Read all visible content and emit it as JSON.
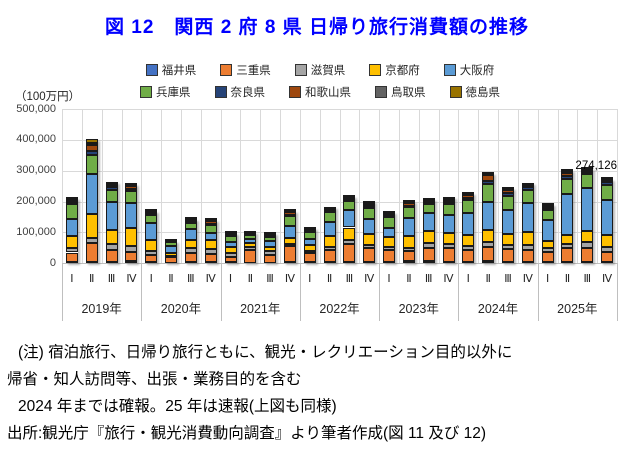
{
  "title": {
    "text": "図 12　関西 2 府 8 県 日帰り旅行消費額の推移"
  },
  "chart": {
    "unit_label": "（100万円）",
    "annotation_text": "274,126"
  },
  "chart_data": {
    "type": "bar",
    "stacked": true,
    "title": "図12 関西2府8県 日帰り旅行消費額の推移",
    "ylabel": "（100万円）",
    "xlabel": "",
    "ylim": [
      0,
      500000
    ],
    "y_tick_step": 100000,
    "y_ticks": [
      "0",
      "100,000",
      "200,000",
      "300,000",
      "400,000",
      "500,000"
    ],
    "grid": true,
    "legend_position": "top",
    "years": [
      "2019年",
      "2020年",
      "2021年",
      "2022年",
      "2023年",
      "2024年",
      "2025年"
    ],
    "quarters": [
      "Ⅰ",
      "Ⅱ",
      "Ⅲ",
      "Ⅳ"
    ],
    "categories": [
      "2019-Ⅰ",
      "2019-Ⅱ",
      "2019-Ⅲ",
      "2019-Ⅳ",
      "2020-Ⅰ",
      "2020-Ⅱ",
      "2020-Ⅲ",
      "2020-Ⅳ",
      "2021-Ⅰ",
      "2021-Ⅱ",
      "2021-Ⅲ",
      "2021-Ⅳ",
      "2022-Ⅰ",
      "2022-Ⅱ",
      "2022-Ⅲ",
      "2022-Ⅳ",
      "2023-Ⅰ",
      "2023-Ⅱ",
      "2023-Ⅲ",
      "2023-Ⅳ",
      "2024-Ⅰ",
      "2024-Ⅱ",
      "2024-Ⅲ",
      "2024-Ⅳ",
      "2025-Ⅰ",
      "2025-Ⅱ",
      "2025-Ⅲ",
      "2025-Ⅳ"
    ],
    "legend_rows": [
      [
        0,
        1,
        2,
        3,
        4
      ],
      [
        5,
        6,
        7,
        8,
        9
      ]
    ],
    "series": [
      {
        "name": "福井県",
        "color": "#4472C4",
        "values": [
          5000,
          5000,
          5000,
          8000,
          3000,
          2000,
          3000,
          3000,
          3000,
          2000,
          2000,
          3000,
          3000,
          3000,
          5000,
          5000,
          4000,
          8000,
          8000,
          5000,
          5000,
          8000,
          5000,
          5000,
          4000,
          5000,
          5000,
          4000
        ]
      },
      {
        "name": "三重県",
        "color": "#ED7D31",
        "values": [
          30000,
          60000,
          38000,
          30000,
          24000,
          19000,
          30000,
          27000,
          18000,
          41000,
          25000,
          53000,
          30000,
          40000,
          57000,
          44000,
          39000,
          32000,
          41000,
          45000,
          38000,
          46000,
          40000,
          38000,
          32000,
          43000,
          46000,
          34000
        ]
      },
      {
        "name": "滋賀県",
        "color": "#A5A5A5",
        "values": [
          16000,
          16000,
          20000,
          19000,
          13000,
          3000,
          16000,
          15000,
          13000,
          9000,
          14000,
          5000,
          7000,
          11000,
          14000,
          11000,
          11000,
          11000,
          16000,
          14000,
          14000,
          14000,
          14000,
          16000,
          13000,
          13000,
          18000,
          16000
        ]
      },
      {
        "name": "京都府",
        "color": "#FFC000",
        "values": [
          38000,
          80000,
          45000,
          58000,
          34000,
          8000,
          25000,
          30000,
          18000,
          13000,
          13000,
          22000,
          20000,
          35000,
          40000,
          35000,
          30000,
          36000,
          40000,
          35000,
          35000,
          40000,
          35000,
          43000,
          24000,
          30000,
          35000,
          38000
        ]
      },
      {
        "name": "大阪府",
        "color": "#5B9BD5",
        "values": [
          54000,
          127000,
          92000,
          81000,
          57000,
          24000,
          37000,
          24000,
          18000,
          13000,
          19000,
          38000,
          18000,
          44000,
          58000,
          47000,
          30000,
          60000,
          58000,
          57000,
          70000,
          90000,
          80000,
          95000,
          68000,
          135000,
          139000,
          114000
        ]
      },
      {
        "name": "兵庫県",
        "color": "#70AD47",
        "values": [
          48000,
          62000,
          38000,
          38000,
          24000,
          12000,
          20000,
          25000,
          18000,
          14000,
          13000,
          33000,
          23000,
          32000,
          29000,
          38000,
          35000,
          34000,
          29000,
          36000,
          42000,
          59000,
          43000,
          41000,
          33000,
          48000,
          47000,
          49000
        ]
      },
      {
        "name": "奈良県",
        "color": "#264478",
        "values": [
          9000,
          14000,
          8000,
          8000,
          6000,
          1000,
          4000,
          5000,
          3000,
          2000,
          3000,
          4000,
          4000,
          4000,
          5000,
          5000,
          5000,
          6000,
          5000,
          6000,
          8000,
          11000,
          11000,
          8000,
          5000,
          9000,
          6000,
          10000
        ]
      },
      {
        "name": "和歌山県",
        "color": "#9E480E",
        "values": [
          5000,
          18000,
          9000,
          8000,
          6000,
          1000,
          5000,
          8000,
          4000,
          2000,
          4000,
          9000,
          4000,
          5000,
          5000,
          8000,
          5000,
          8000,
          5000,
          8000,
          8000,
          17000,
          8000,
          5000,
          6000,
          11000,
          6000,
          5000
        ]
      },
      {
        "name": "鳥取県",
        "color": "#636363",
        "values": [
          2000,
          9000,
          3000,
          3000,
          2000,
          1000,
          2000,
          2000,
          2000,
          2000,
          2000,
          2000,
          2000,
          3000,
          3000,
          4000,
          3000,
          4000,
          3000,
          4000,
          4000,
          4000,
          4000,
          4000,
          3000,
          4000,
          4000,
          2000
        ]
      },
      {
        "name": "徳島県",
        "color": "#997300",
        "values": [
          4000,
          11000,
          5000,
          5000,
          2000,
          1000,
          2000,
          2000,
          2000,
          2000,
          2000,
          2000,
          2000,
          4000,
          3000,
          4000,
          3000,
          4000,
          3000,
          4000,
          4000,
          4000,
          4000,
          4000,
          3000,
          4000,
          4000,
          2126
        ]
      }
    ],
    "annotation": {
      "text": "274,126",
      "category": "2025-Ⅳ",
      "value": 274126
    }
  },
  "notes": [
    "(注) 宿泊旅行、日帰り旅行ともに、観光・レクリエーション目的以外に",
    "帰省・知人訪問等、出張・業務目的を含む",
    "2024 年までは確報。25 年は速報(上図も同様)",
    "出所:観光庁『旅行・観光消費動向調査』より筆者作成(図 11 及び 12)"
  ]
}
